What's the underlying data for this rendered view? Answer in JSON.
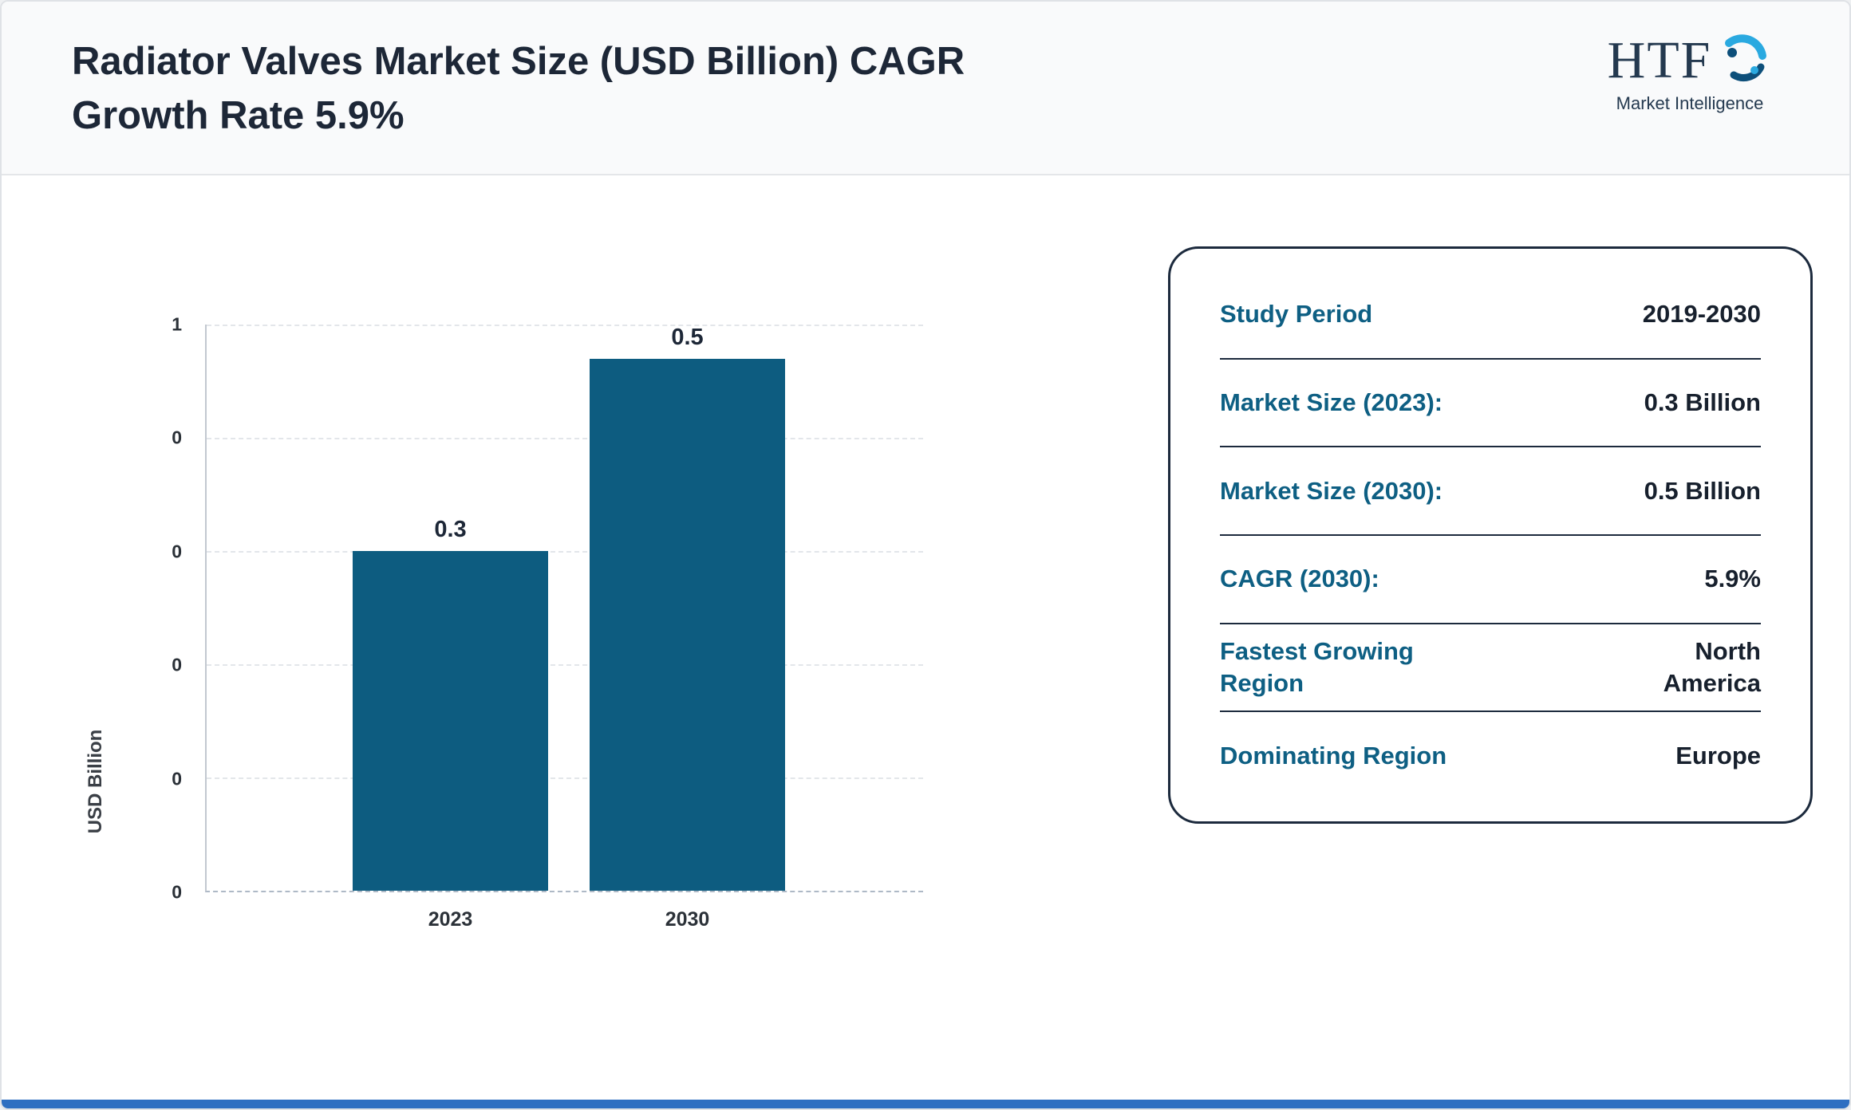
{
  "header": {
    "title_line1": "Radiator Valves Market Size (USD Billion) CAGR",
    "title_line2": "Growth Rate 5.9%",
    "logo": {
      "text": "HTF",
      "subtext": "Market Intelligence"
    }
  },
  "chart_data": {
    "type": "bar",
    "title": "Radiator Valves Market Size (USD Billion) CAGR Growth Rate 5.9%",
    "categories": [
      "2023",
      "2030"
    ],
    "values": [
      0.3,
      0.5
    ],
    "bar_labels": [
      "0.3",
      "0.5"
    ],
    "xlabel": "",
    "ylabel": "USD Billion",
    "ylim": [
      0,
      0.5
    ],
    "ytick_labels_top_to_bottom": [
      "1",
      "0",
      "0",
      "0",
      "0",
      "0"
    ],
    "grid": "horizontal-dashed",
    "legend": "none",
    "bar_color": "#0d5c80"
  },
  "info_card": {
    "rows": [
      {
        "label": "Study Period",
        "value": "2019-2030"
      },
      {
        "label": "Market Size (2023):",
        "value": "0.3 Billion"
      },
      {
        "label": "Market Size (2030):",
        "value": "0.5 Billion"
      },
      {
        "label": "CAGR (2030):",
        "value": "5.9%"
      },
      {
        "label": "Fastest Growing Region",
        "value": "North America"
      },
      {
        "label": "Dominating Region",
        "value": "Europe"
      }
    ]
  },
  "colors": {
    "bar": "#0d5c80",
    "card_label": "#0e5f83",
    "card_value": "#17202d",
    "title": "#1d2737",
    "footer_strip": "#2e6fc1"
  }
}
